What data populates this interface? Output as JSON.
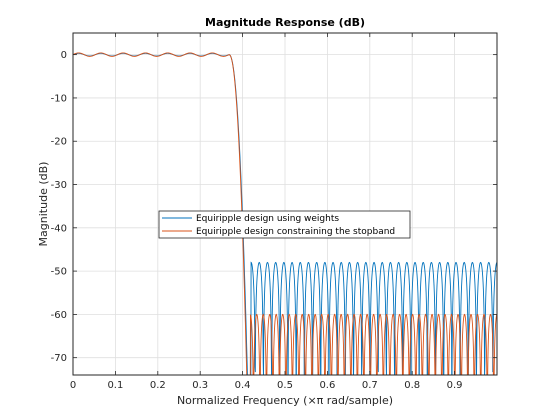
{
  "chart_data": {
    "type": "line",
    "title": "Magnitude Response (dB)",
    "xlabel": "Normalized Frequency (×π rad/sample)",
    "ylabel": "Magnitude (dB)",
    "xlim": [
      0,
      1
    ],
    "ylim": [
      -74,
      5
    ],
    "x_ticks": [
      0,
      0.1,
      0.2,
      0.3,
      0.4,
      0.5,
      0.6,
      0.7,
      0.8,
      0.9
    ],
    "x_tick_labels": [
      "0",
      "0.1",
      "0.2",
      "0.3",
      "0.4",
      "0.5",
      "0.6",
      "0.7",
      "0.8",
      "0.9"
    ],
    "y_ticks": [
      0,
      -10,
      -20,
      -30,
      -40,
      -50,
      -60,
      -70
    ],
    "y_tick_labels": [
      "0",
      "-10",
      "-20",
      "-30",
      "-40",
      "-50",
      "-60",
      "-70"
    ],
    "grid": true,
    "legend_position": "center-left",
    "series": [
      {
        "name": "Equiripple design using weights",
        "color": "#0072bd",
        "passband_edge": 0.38,
        "stopband_edge": 0.42,
        "passband_ripple_db": 0.3,
        "stopband_peak_db": -48,
        "stopband_lobes": 30
      },
      {
        "name": "Equiripple design constraining the stopband",
        "color": "#d95319",
        "passband_edge": 0.38,
        "stopband_edge": 0.418,
        "passband_ripple_db": 0.4,
        "stopband_peak_db": -60,
        "stopband_lobes": 38
      }
    ]
  }
}
